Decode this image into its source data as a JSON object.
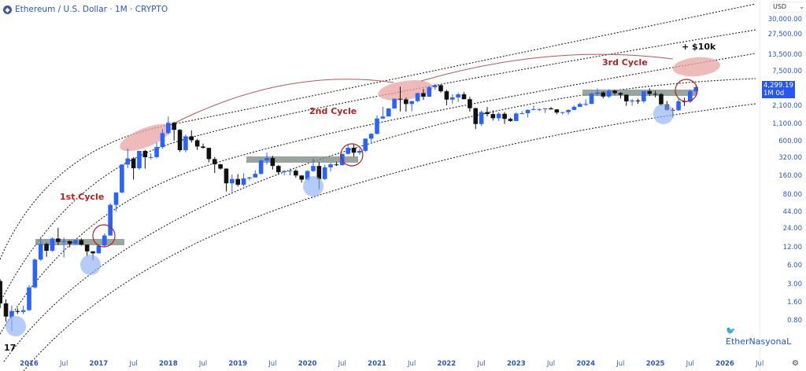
{
  "header": {
    "title": "Ethereum / U.S. Dollar · 1M · CRYPTO",
    "currency": "USD"
  },
  "current_price": {
    "value": "4,299.19",
    "timeframe": "1M 0d"
  },
  "watermark": "EtherNasyonaL",
  "tv_logo": "TV",
  "colors": {
    "up": "#2962ff",
    "down": "#111111",
    "cycle_label": "#b22222",
    "peak_zone": "#e8a3a3",
    "bottom_zone": "#8fb0f5",
    "resistance_band": "#7f8f86"
  },
  "annotations": {
    "c1": "1st Cycle",
    "c2": "2nd Cycle",
    "c3": "3rd Cycle",
    "target": "+ $10k"
  },
  "chart_data": {
    "type": "candlestick",
    "scale": "log",
    "interval": "1M",
    "start": "2015-08",
    "y_ticks": [
      "30,000.00",
      "27,500.00",
      "13,500.00",
      "7,500.00",
      "2,100.00",
      "1,100.00",
      "600.00",
      "320.00",
      "160.00",
      "80.00",
      "44.00",
      "24.00",
      "12.00",
      "6.00",
      "3.00",
      "1.60",
      "0.80"
    ],
    "x_ticks": [
      "2016",
      "Jul",
      "2017",
      "Jul",
      "2018",
      "Jul",
      "2019",
      "Jul",
      "2020",
      "Jul",
      "2021",
      "Jul",
      "2022",
      "Jul",
      "2023",
      "Jul",
      "2024",
      "Jul",
      "2025",
      "Jul",
      "2026",
      "Jul"
    ],
    "ohlc": [
      [
        2.8,
        3,
        1,
        1.2
      ],
      [
        1.2,
        1.4,
        0.6,
        0.73
      ],
      [
        0.73,
        1.1,
        0.42,
        0.9
      ],
      [
        0.9,
        1,
        0.8,
        0.87
      ],
      [
        0.87,
        1.1,
        0.8,
        0.93
      ],
      [
        0.93,
        2.4,
        0.9,
        2.2
      ],
      [
        2.2,
        6.6,
        2.1,
        6.3
      ],
      [
        6.3,
        15,
        6,
        11.4
      ],
      [
        11.4,
        12,
        7,
        8.8
      ],
      [
        8.8,
        14.6,
        8.5,
        14
      ],
      [
        14,
        21,
        11,
        12.3
      ],
      [
        12.3,
        14.5,
        6.8,
        12.7
      ],
      [
        12.7,
        12.9,
        10,
        11.5
      ],
      [
        11.5,
        13.5,
        11,
        13.2
      ],
      [
        13.2,
        14.1,
        10.7,
        11.1
      ],
      [
        11.1,
        11.1,
        7.2,
        8.6
      ],
      [
        8.6,
        8.7,
        6.2,
        8
      ],
      [
        8,
        11.4,
        7.9,
        10.7
      ],
      [
        10.7,
        17,
        10.4,
        15.7
      ],
      [
        15.7,
        53,
        15.5,
        50
      ],
      [
        50,
        80,
        39,
        80
      ],
      [
        80,
        230,
        77,
        230
      ],
      [
        230,
        420,
        200,
        290
      ],
      [
        290,
        306,
        130,
        200
      ],
      [
        200,
        390,
        188,
        385
      ],
      [
        385,
        400,
        197,
        303
      ],
      [
        303,
        350,
        280,
        305
      ],
      [
        305,
        530,
        290,
        445
      ],
      [
        445,
        880,
        420,
        756
      ],
      [
        756,
        1420,
        720,
        1118
      ],
      [
        1118,
        1160,
        570,
        855
      ],
      [
        855,
        880,
        370,
        397
      ],
      [
        397,
        720,
        365,
        670
      ],
      [
        670,
        840,
        530,
        577
      ],
      [
        577,
        610,
        400,
        455
      ],
      [
        455,
        510,
        420,
        433
      ],
      [
        433,
        433,
        250,
        283
      ],
      [
        283,
        305,
        167,
        232
      ],
      [
        232,
        237,
        190,
        197
      ],
      [
        197,
        200,
        83,
        113
      ],
      [
        113,
        158,
        81,
        133
      ],
      [
        133,
        160,
        100,
        107
      ],
      [
        107,
        165,
        101,
        136
      ],
      [
        136,
        145,
        126,
        141
      ],
      [
        141,
        185,
        140,
        162
      ],
      [
        162,
        280,
        158,
        268
      ],
      [
        268,
        362,
        230,
        294
      ],
      [
        294,
        320,
        190,
        218
      ],
      [
        218,
        227,
        160,
        172
      ],
      [
        172,
        186,
        153,
        180
      ],
      [
        180,
        198,
        153,
        182
      ],
      [
        182,
        192,
        140,
        152
      ],
      [
        152,
        153,
        116,
        130
      ],
      [
        130,
        185,
        127,
        180
      ],
      [
        180,
        288,
        175,
        218
      ],
      [
        218,
        253,
        90,
        133
      ],
      [
        133,
        227,
        128,
        207
      ],
      [
        207,
        250,
        178,
        231
      ],
      [
        231,
        254,
        218,
        225
      ],
      [
        225,
        345,
        222,
        345
      ],
      [
        345,
        490,
        340,
        434
      ],
      [
        434,
        488,
        310,
        360
      ],
      [
        360,
        416,
        335,
        386
      ],
      [
        386,
        623,
        370,
        613
      ],
      [
        613,
        755,
        535,
        737
      ],
      [
        737,
        1475,
        715,
        1312
      ],
      [
        1312,
        2040,
        1290,
        1417
      ],
      [
        1417,
        1945,
        1460,
        1918
      ],
      [
        1918,
        2800,
        1900,
        2773
      ],
      [
        2773,
        4380,
        1720,
        2706
      ],
      [
        2706,
        2890,
        1700,
        2275
      ],
      [
        2275,
        2560,
        1720,
        2536
      ],
      [
        2536,
        3470,
        2450,
        3433
      ],
      [
        3433,
        4030,
        2650,
        3001
      ],
      [
        3001,
        4460,
        2970,
        4288
      ],
      [
        4288,
        4870,
        3900,
        4631
      ],
      [
        4631,
        4780,
        3500,
        3683
      ],
      [
        3683,
        3900,
        2160,
        2688
      ],
      [
        2688,
        3290,
        2300,
        2920
      ],
      [
        2920,
        3480,
        2450,
        3282
      ],
      [
        3282,
        3580,
        2710,
        2730
      ],
      [
        2730,
        2970,
        1700,
        1942
      ],
      [
        1942,
        1970,
        880,
        1067
      ],
      [
        1067,
        1780,
        1000,
        1678
      ],
      [
        1678,
        2030,
        1420,
        1553
      ],
      [
        1553,
        1790,
        1220,
        1328
      ],
      [
        1328,
        1660,
        1190,
        1572
      ],
      [
        1572,
        1680,
        1070,
        1295
      ],
      [
        1295,
        1350,
        1160,
        1196
      ],
      [
        1196,
        1680,
        1190,
        1585
      ],
      [
        1585,
        1740,
        1540,
        1605
      ],
      [
        1605,
        1850,
        1370,
        1822
      ],
      [
        1822,
        2140,
        1800,
        1870
      ],
      [
        1870,
        1930,
        1740,
        1874
      ],
      [
        1874,
        1930,
        1620,
        1934
      ],
      [
        1934,
        2030,
        1850,
        1857
      ],
      [
        1857,
        1870,
        1550,
        1645
      ],
      [
        1645,
        1690,
        1530,
        1671
      ],
      [
        1671,
        1860,
        1520,
        1815
      ],
      [
        1815,
        2140,
        1800,
        2045
      ],
      [
        2045,
        2400,
        2030,
        2282
      ],
      [
        2282,
        2720,
        2100,
        2283
      ],
      [
        2283,
        3480,
        2270,
        3340
      ],
      [
        3340,
        4090,
        3050,
        3505
      ],
      [
        3505,
        3700,
        2810,
        3013
      ],
      [
        3013,
        3980,
        2860,
        3763
      ],
      [
        3763,
        3880,
        3230,
        3434
      ],
      [
        3434,
        3560,
        2810,
        3232
      ],
      [
        3232,
        3290,
        2120,
        2513
      ],
      [
        2513,
        2730,
        2150,
        2602
      ],
      [
        2602,
        2770,
        2300,
        2519
      ],
      [
        2519,
        3720,
        2350,
        3704
      ],
      [
        3704,
        4110,
        3100,
        3332
      ],
      [
        3332,
        3740,
        2930,
        3300
      ],
      [
        3300,
        3440,
        2100,
        2237
      ],
      [
        2237,
        2550,
        1760,
        1822
      ],
      [
        1822,
        1960,
        1380,
        1793
      ],
      [
        1793,
        2790,
        1750,
        2528
      ],
      [
        2528,
        2880,
        2110,
        2486
      ],
      [
        2486,
        3940,
        2370,
        3698
      ],
      [
        3698,
        4790,
        3360,
        4299.19
      ]
    ]
  }
}
